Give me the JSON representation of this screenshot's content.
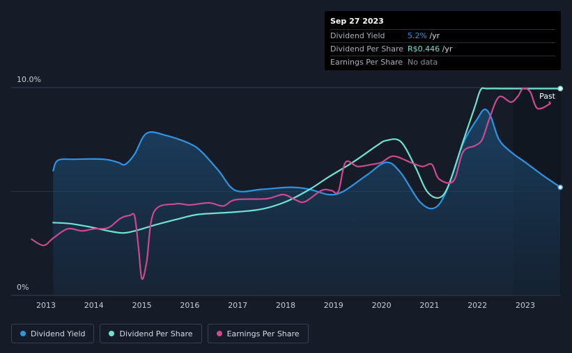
{
  "tooltip": {
    "date": "Sep 27 2023",
    "rows": [
      {
        "label": "Dividend Yield",
        "value": "5.2%",
        "unit": " /yr",
        "color": "#2d95e3"
      },
      {
        "label": "Dividend Per Share",
        "value": "R$0.446",
        "unit": " /yr",
        "color": "#6fe3d0"
      },
      {
        "label": "Earnings Per Share",
        "value": "No data",
        "unit": "",
        "color": "#8a919c"
      }
    ]
  },
  "legend": [
    {
      "label": "Dividend Yield",
      "color": "#2d95e3"
    },
    {
      "label": "Dividend Per Share",
      "color": "#6fe3d0"
    },
    {
      "label": "Earnings Per Share",
      "color": "#cc4b8e"
    }
  ],
  "past_label": "Past",
  "chart_data": {
    "type": "line",
    "y_labels": [
      "10.0%",
      "0%"
    ],
    "ylim": [
      0,
      10
    ],
    "xlim": [
      2012.7,
      2023.75
    ],
    "x_ticks": [
      2013,
      2014,
      2015,
      2016,
      2017,
      2018,
      2019,
      2020,
      2021,
      2022,
      2023
    ],
    "forecast_start": 2022.75,
    "series": [
      {
        "name": "Dividend Yield",
        "color": "#2d95e3",
        "area": true,
        "points": [
          [
            2013.15,
            6.0
          ],
          [
            2013.25,
            6.5
          ],
          [
            2013.6,
            6.55
          ],
          [
            2014.2,
            6.55
          ],
          [
            2014.5,
            6.4
          ],
          [
            2014.65,
            6.3
          ],
          [
            2014.85,
            6.8
          ],
          [
            2015.1,
            7.8
          ],
          [
            2015.5,
            7.7
          ],
          [
            2016.0,
            7.3
          ],
          [
            2016.25,
            6.9
          ],
          [
            2016.6,
            6.0
          ],
          [
            2016.95,
            5.05
          ],
          [
            2017.5,
            5.1
          ],
          [
            2018.1,
            5.2
          ],
          [
            2018.5,
            5.1
          ],
          [
            2018.9,
            4.85
          ],
          [
            2019.2,
            5.0
          ],
          [
            2019.7,
            5.8
          ],
          [
            2020.1,
            6.4
          ],
          [
            2020.4,
            5.9
          ],
          [
            2020.8,
            4.5
          ],
          [
            2021.1,
            4.2
          ],
          [
            2021.35,
            5.0
          ],
          [
            2021.7,
            7.3
          ],
          [
            2022.0,
            8.5
          ],
          [
            2022.15,
            8.95
          ],
          [
            2022.28,
            8.6
          ],
          [
            2022.45,
            7.5
          ],
          [
            2022.7,
            6.9
          ],
          [
            2023.0,
            6.4
          ],
          [
            2023.35,
            5.8
          ],
          [
            2023.73,
            5.2
          ]
        ]
      },
      {
        "name": "Dividend Per Share",
        "color": "#6fe3d0",
        "area": false,
        "points": [
          [
            2013.15,
            3.5
          ],
          [
            2013.5,
            3.45
          ],
          [
            2013.9,
            3.3
          ],
          [
            2014.3,
            3.1
          ],
          [
            2014.6,
            3.0
          ],
          [
            2014.85,
            3.1
          ],
          [
            2015.3,
            3.4
          ],
          [
            2015.8,
            3.7
          ],
          [
            2016.2,
            3.9
          ],
          [
            2016.9,
            4.0
          ],
          [
            2017.5,
            4.15
          ],
          [
            2018.0,
            4.5
          ],
          [
            2018.5,
            5.1
          ],
          [
            2018.9,
            5.7
          ],
          [
            2019.4,
            6.4
          ],
          [
            2019.9,
            7.2
          ],
          [
            2020.1,
            7.45
          ],
          [
            2020.4,
            7.4
          ],
          [
            2020.7,
            6.2
          ],
          [
            2020.95,
            5.0
          ],
          [
            2021.2,
            4.7
          ],
          [
            2021.4,
            5.3
          ],
          [
            2021.7,
            7.4
          ],
          [
            2021.95,
            9.1
          ],
          [
            2022.07,
            9.9
          ],
          [
            2022.2,
            9.95
          ],
          [
            2022.6,
            9.95
          ],
          [
            2023.73,
            9.95
          ]
        ]
      },
      {
        "name": "Earnings Per Share",
        "color": "#cc4b8e",
        "area": false,
        "points": [
          [
            2012.7,
            2.7
          ],
          [
            2012.95,
            2.4
          ],
          [
            2013.15,
            2.75
          ],
          [
            2013.45,
            3.2
          ],
          [
            2013.75,
            3.1
          ],
          [
            2014.0,
            3.2
          ],
          [
            2014.3,
            3.25
          ],
          [
            2014.55,
            3.7
          ],
          [
            2014.75,
            3.85
          ],
          [
            2014.85,
            3.8
          ],
          [
            2014.93,
            2.3
          ],
          [
            2015.0,
            0.8
          ],
          [
            2015.1,
            1.6
          ],
          [
            2015.25,
            4.0
          ],
          [
            2015.7,
            4.4
          ],
          [
            2016.0,
            4.35
          ],
          [
            2016.4,
            4.45
          ],
          [
            2016.7,
            4.3
          ],
          [
            2016.95,
            4.6
          ],
          [
            2017.6,
            4.65
          ],
          [
            2017.95,
            4.85
          ],
          [
            2018.2,
            4.6
          ],
          [
            2018.4,
            4.5
          ],
          [
            2018.75,
            5.05
          ],
          [
            2018.95,
            5.05
          ],
          [
            2019.1,
            5.0
          ],
          [
            2019.25,
            6.4
          ],
          [
            2019.5,
            6.2
          ],
          [
            2019.8,
            6.3
          ],
          [
            2020.0,
            6.4
          ],
          [
            2020.25,
            6.7
          ],
          [
            2020.6,
            6.4
          ],
          [
            2020.85,
            6.2
          ],
          [
            2021.05,
            6.3
          ],
          [
            2021.2,
            5.6
          ],
          [
            2021.5,
            5.5
          ],
          [
            2021.7,
            6.9
          ],
          [
            2021.95,
            7.2
          ],
          [
            2022.1,
            7.5
          ],
          [
            2022.25,
            8.5
          ],
          [
            2022.45,
            9.55
          ],
          [
            2022.7,
            9.3
          ],
          [
            2022.85,
            9.6
          ],
          [
            2022.95,
            9.95
          ],
          [
            2023.1,
            9.8
          ],
          [
            2023.25,
            9.0
          ],
          [
            2023.5,
            9.2
          ],
          [
            2023.5,
            9.3
          ]
        ]
      }
    ]
  }
}
